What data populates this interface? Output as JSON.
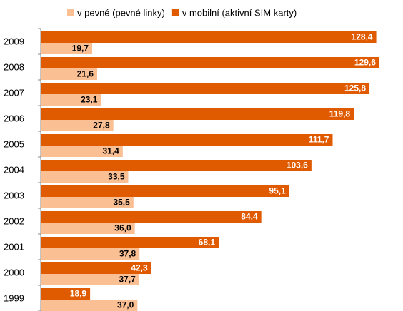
{
  "chart_data": {
    "type": "bar",
    "orientation": "horizontal",
    "categories": [
      "2009",
      "2008",
      "2007",
      "2006",
      "2005",
      "2004",
      "2003",
      "2002",
      "2001",
      "2000",
      "1999"
    ],
    "series": [
      {
        "name": "v pevné (pevné linky)",
        "color": "#fbbf94",
        "values": [
          19.7,
          21.6,
          23.1,
          27.8,
          31.4,
          33.5,
          35.5,
          36.0,
          37.8,
          37.7,
          37.0
        ],
        "value_labels": [
          "19,7",
          "21,6",
          "23,1",
          "27,8",
          "31,4",
          "33,5",
          "35,5",
          "36,0",
          "37,8",
          "37,7",
          "37,0"
        ]
      },
      {
        "name": "v mobilní (aktivní SIM karty)",
        "color": "#e05a00",
        "values": [
          128.4,
          129.6,
          125.8,
          119.8,
          111.7,
          103.6,
          95.1,
          84.4,
          68.1,
          42.3,
          18.9
        ],
        "value_labels": [
          "128,4",
          "129,6",
          "125,8",
          "119,8",
          "111,7",
          "103,6",
          "95,1",
          "84,4",
          "68,1",
          "42,3",
          "18,9"
        ]
      }
    ],
    "xlim": [
      0,
      137
    ],
    "legend": "top"
  }
}
